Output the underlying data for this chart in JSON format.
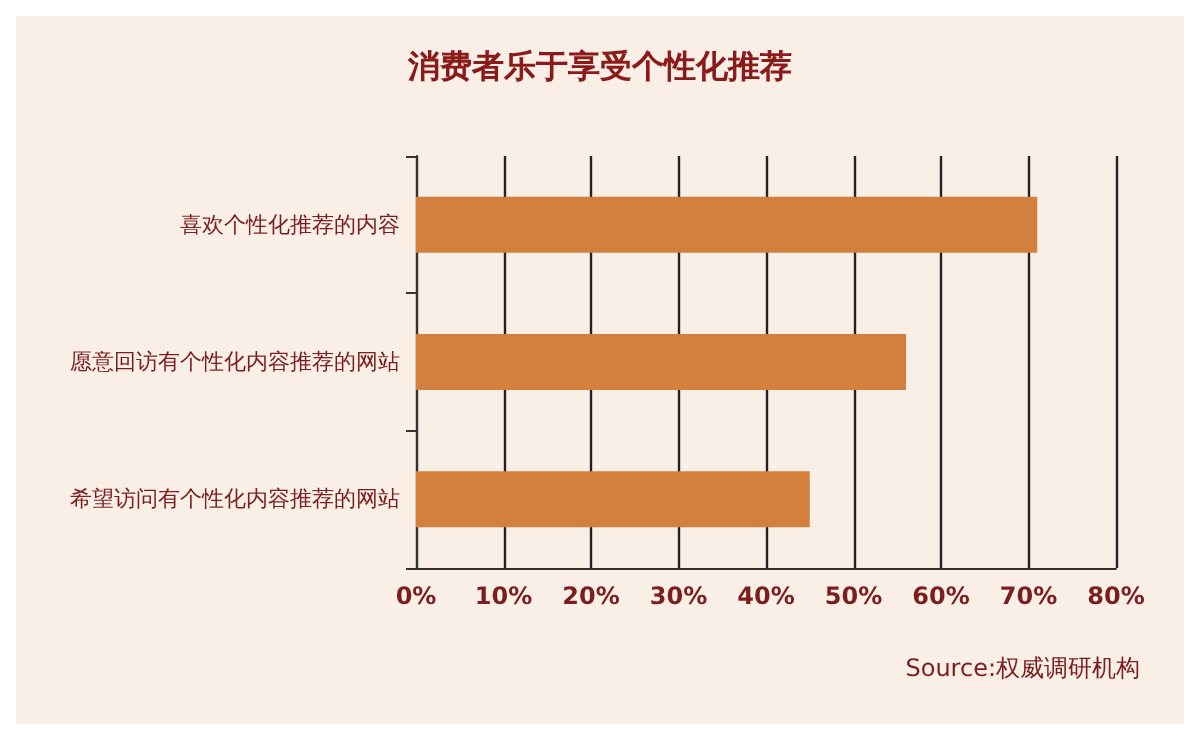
{
  "chart_data": {
    "type": "bar",
    "orientation": "horizontal",
    "title": "消费者乐于享受个性化推荐",
    "categories": [
      "喜欢个性化推荐的内容",
      "愿意回访有个性化内容推荐的网站",
      "希望访问有个性化内容推荐的网站"
    ],
    "values": [
      71,
      56,
      45
    ],
    "color": "#d37f3d",
    "xlim": [
      0,
      80
    ],
    "xticks": [
      {
        "value": 0,
        "label": "0%"
      },
      {
        "value": 10,
        "label": "10%"
      },
      {
        "value": 20,
        "label": "20%"
      },
      {
        "value": 30,
        "label": "30%"
      },
      {
        "value": 40,
        "label": "40%"
      },
      {
        "value": 50,
        "label": "50%"
      },
      {
        "value": 60,
        "label": "60%"
      },
      {
        "value": 70,
        "label": "70%"
      },
      {
        "value": 80,
        "label": "80%"
      }
    ],
    "grid": "x",
    "annotations": [
      "Source:权威调研机构"
    ]
  }
}
